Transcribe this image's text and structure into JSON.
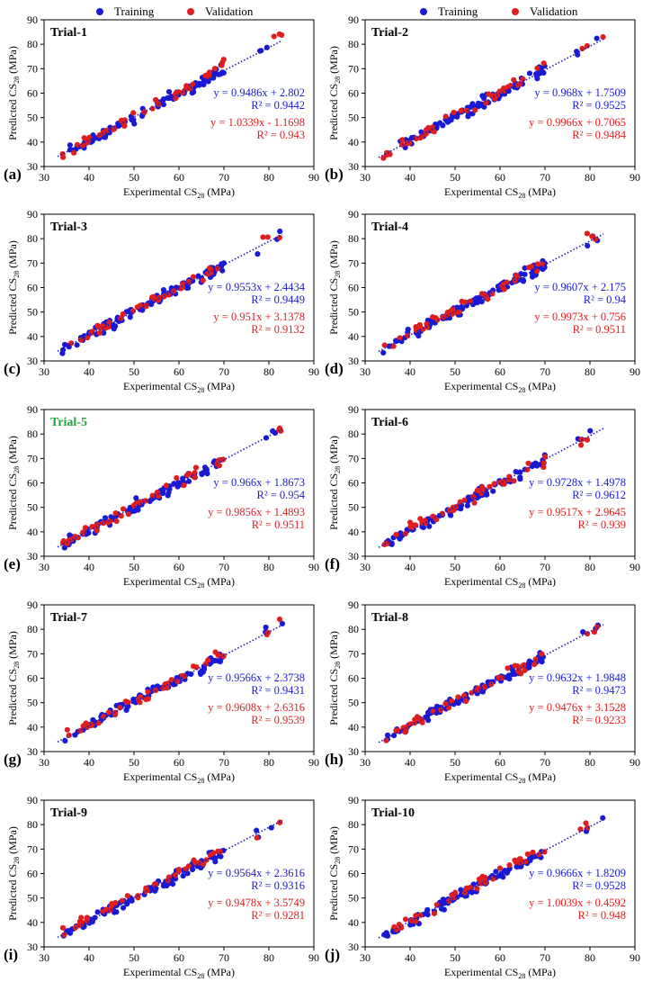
{
  "legend": {
    "training_label": "Training",
    "validation_label": "Validation",
    "training_color": "#1a1ad6",
    "validation_color": "#e01e1e"
  },
  "colors": {
    "trendline": "#1a1ab8",
    "trial5_title": "#22a83a"
  },
  "chart_data": [
    {
      "type": "scatter",
      "panel_label": "(a)",
      "title": "Trial-1",
      "xlabel": "Experimental CS28 (MPa)",
      "ylabel": "Predicted CS28 (MPa)",
      "xlim": [
        30,
        90
      ],
      "ylim": [
        30,
        90
      ],
      "xticks": [
        30,
        40,
        50,
        60,
        70,
        80,
        90
      ],
      "yticks": [
        30,
        40,
        50,
        60,
        70,
        80,
        90
      ],
      "series": [
        {
          "name": "Training",
          "fit": {
            "slope": 0.9486,
            "intercept": 2.802
          },
          "equation": "y = 0.9486x + 2.802",
          "r2": "R² = 0.9442"
        },
        {
          "name": "Validation",
          "fit": {
            "slope": 1.0339,
            "intercept": -1.1698
          },
          "equation": "y = 1.0339x - 1.1698",
          "r2": "R² = 0.943"
        }
      ]
    },
    {
      "type": "scatter",
      "panel_label": "(b)",
      "title": "Trial-2",
      "xlabel": "Experimental CS28 (MPa)",
      "ylabel": "Predicted CS28 (MPa)",
      "xlim": [
        30,
        90
      ],
      "ylim": [
        30,
        90
      ],
      "xticks": [
        30,
        40,
        50,
        60,
        70,
        80,
        90
      ],
      "yticks": [
        30,
        40,
        50,
        60,
        70,
        80,
        90
      ],
      "series": [
        {
          "name": "Training",
          "fit": {
            "slope": 0.968,
            "intercept": 1.7509
          },
          "equation": "y = 0.968x + 1.7509",
          "r2": "R² = 0.9525"
        },
        {
          "name": "Validation",
          "fit": {
            "slope": 0.9966,
            "intercept": 0.7065
          },
          "equation": "y = 0.9966x + 0.7065",
          "r2": "R² = 0.9484"
        }
      ]
    },
    {
      "type": "scatter",
      "panel_label": "(c)",
      "title": "Trial-3",
      "xlabel": "Experimental CS28 (MPa)",
      "ylabel": "Predicted CS28 (MPa)",
      "xlim": [
        30,
        90
      ],
      "ylim": [
        30,
        90
      ],
      "xticks": [
        30,
        40,
        50,
        60,
        70,
        80,
        90
      ],
      "yticks": [
        30,
        40,
        50,
        60,
        70,
        80,
        90
      ],
      "series": [
        {
          "name": "Training",
          "fit": {
            "slope": 0.9553,
            "intercept": 2.4434
          },
          "equation": "y = 0.9553x + 2.4434",
          "r2": "R² = 0.9449"
        },
        {
          "name": "Validation",
          "fit": {
            "slope": 0.951,
            "intercept": 3.1378
          },
          "equation": "y = 0.951x + 3.1378",
          "r2": "R² = 0.9132"
        }
      ]
    },
    {
      "type": "scatter",
      "panel_label": "(d)",
      "title": "Trial-4",
      "xlabel": "Experimental CS28 (MPa)",
      "ylabel": "Predicted CS28 (MPa)",
      "xlim": [
        30,
        90
      ],
      "ylim": [
        30,
        90
      ],
      "xticks": [
        30,
        40,
        50,
        60,
        70,
        80,
        90
      ],
      "yticks": [
        30,
        40,
        50,
        60,
        70,
        80,
        90
      ],
      "series": [
        {
          "name": "Training",
          "fit": {
            "slope": 0.9607,
            "intercept": 2.175
          },
          "equation": "y = 0.9607x + 2.175",
          "r2": "R² = 0.94"
        },
        {
          "name": "Validation",
          "fit": {
            "slope": 0.9973,
            "intercept": 0.756
          },
          "equation": "y = 0.9973x + 0.756",
          "r2": "R² = 0.9511"
        }
      ]
    },
    {
      "type": "scatter",
      "panel_label": "(e)",
      "title": "Trial-5",
      "title_highlight": true,
      "xlabel": "Experimental CS28 (MPa)",
      "ylabel": "Predicted CS28 (MPa)",
      "xlim": [
        30,
        90
      ],
      "ylim": [
        30,
        90
      ],
      "xticks": [
        30,
        40,
        50,
        60,
        70,
        80,
        90
      ],
      "yticks": [
        30,
        40,
        50,
        60,
        70,
        80,
        90
      ],
      "series": [
        {
          "name": "Training",
          "fit": {
            "slope": 0.966,
            "intercept": 1.8673
          },
          "equation": "y = 0.966x + 1.8673",
          "r2": "R² = 0.954"
        },
        {
          "name": "Validation",
          "fit": {
            "slope": 0.9856,
            "intercept": 1.4893
          },
          "equation": "y = 0.9856x + 1.4893",
          "r2": "R² = 0.9511"
        }
      ]
    },
    {
      "type": "scatter",
      "panel_label": "(f)",
      "title": "Trial-6",
      "xlabel": "Experimental CS28 (MPa)",
      "ylabel": "Predicted CS28 (MPa)",
      "xlim": [
        30,
        90
      ],
      "ylim": [
        30,
        90
      ],
      "xticks": [
        30,
        40,
        50,
        60,
        70,
        80,
        90
      ],
      "yticks": [
        30,
        40,
        50,
        60,
        70,
        80,
        90
      ],
      "series": [
        {
          "name": "Training",
          "fit": {
            "slope": 0.9728,
            "intercept": 1.4978
          },
          "equation": "y = 0.9728x + 1.4978",
          "r2": "R² = 0.9612"
        },
        {
          "name": "Validation",
          "fit": {
            "slope": 0.9517,
            "intercept": 2.9645
          },
          "equation": "y = 0.9517x + 2.9645",
          "r2": "R² = 0.939"
        }
      ]
    },
    {
      "type": "scatter",
      "panel_label": "(g)",
      "title": "Trial-7",
      "xlabel": "Experimental CS28 (MPa)",
      "ylabel": "Predicted CS28 (MPa)",
      "xlim": [
        30,
        90
      ],
      "ylim": [
        30,
        90
      ],
      "xticks": [
        30,
        40,
        50,
        60,
        70,
        80,
        90
      ],
      "yticks": [
        30,
        40,
        50,
        60,
        70,
        80,
        90
      ],
      "series": [
        {
          "name": "Training",
          "fit": {
            "slope": 0.9566,
            "intercept": 2.3738
          },
          "equation": "y = 0.9566x + 2.3738",
          "r2": "R² = 0.9431"
        },
        {
          "name": "Validation",
          "fit": {
            "slope": 0.9608,
            "intercept": 2.6316
          },
          "equation": "y = 0.9608x + 2.6316",
          "r2": "R² = 0.9539"
        }
      ]
    },
    {
      "type": "scatter",
      "panel_label": "(h)",
      "title": "Trial-8",
      "xlabel": "Experimental CS28 (MPa)",
      "ylabel": "Predicted CS28 (MPa)",
      "xlim": [
        30,
        90
      ],
      "ylim": [
        30,
        90
      ],
      "xticks": [
        30,
        40,
        50,
        60,
        70,
        80,
        90
      ],
      "yticks": [
        30,
        40,
        50,
        60,
        70,
        80,
        90
      ],
      "series": [
        {
          "name": "Training",
          "fit": {
            "slope": 0.9632,
            "intercept": 1.9848
          },
          "equation": "y = 0.9632x + 1.9848",
          "r2": "R² = 0.9473"
        },
        {
          "name": "Validation",
          "fit": {
            "slope": 0.9476,
            "intercept": 3.1528
          },
          "equation": "y = 0.9476x + 3.1528",
          "r2": "R² = 0.9233"
        }
      ]
    },
    {
      "type": "scatter",
      "panel_label": "(i)",
      "title": "Trial-9",
      "xlabel": "Experimental CS28 (MPa)",
      "ylabel": "Predicted CS28 (MPa)",
      "xlim": [
        30,
        90
      ],
      "ylim": [
        30,
        90
      ],
      "xticks": [
        30,
        40,
        50,
        60,
        70,
        80,
        90
      ],
      "yticks": [
        30,
        40,
        50,
        60,
        70,
        80,
        90
      ],
      "series": [
        {
          "name": "Training",
          "fit": {
            "slope": 0.9564,
            "intercept": 2.3616
          },
          "equation": "y = 0.9564x + 2.3616",
          "r2": "R² = 0.9316"
        },
        {
          "name": "Validation",
          "fit": {
            "slope": 0.9478,
            "intercept": 3.5749
          },
          "equation": "y = 0.9478x + 3.5749",
          "r2": "R² = 0.9281"
        }
      ]
    },
    {
      "type": "scatter",
      "panel_label": "(j)",
      "title": "Trial-10",
      "xlabel": "Experimental CS28 (MPa)",
      "ylabel": "Predicted CS28 (MPa)",
      "xlim": [
        30,
        90
      ],
      "ylim": [
        30,
        90
      ],
      "xticks": [
        30,
        40,
        50,
        60,
        70,
        80,
        90
      ],
      "yticks": [
        30,
        40,
        50,
        60,
        70,
        80,
        90
      ],
      "series": [
        {
          "name": "Training",
          "fit": {
            "slope": 0.9666,
            "intercept": 1.8209
          },
          "equation": "y = 0.9666x + 1.8209",
          "r2": "R² = 0.9528"
        },
        {
          "name": "Validation",
          "fit": {
            "slope": 1.0039,
            "intercept": 0.4592
          },
          "equation": "y = 1.0039x + 0.4592",
          "r2": "R² = 0.948"
        }
      ]
    }
  ]
}
